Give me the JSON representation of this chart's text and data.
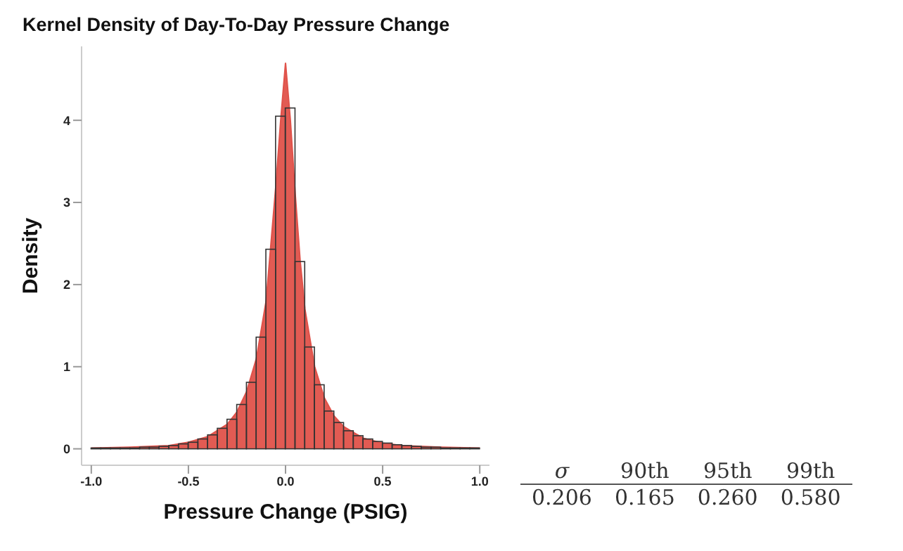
{
  "chart_data": [
    {
      "type": "histogram",
      "title": "Kernel Density of Day-To-Day Pressure Change",
      "xlabel": "Pressure Change (PSIG)",
      "ylabel": "Density",
      "xlim": [
        -1.05,
        1.05
      ],
      "xticks": [
        {
          "value": -1,
          "label": "-1.0"
        },
        {
          "value": -0.5,
          "label": "-0.5"
        },
        {
          "value": 0,
          "label": "0.0"
        },
        {
          "value": 0.5,
          "label": "0.5"
        },
        {
          "value": 1,
          "label": "1.0"
        }
      ],
      "ylim": [
        -0.2,
        4.9
      ],
      "yticks": [
        0,
        1,
        2,
        3,
        4
      ],
      "series": [
        {
          "type": "histogram",
          "color": "#333333",
          "bins": [
            -1.0,
            -0.95,
            -0.9,
            -0.85,
            -0.8,
            -0.75,
            -0.7,
            -0.65,
            -0.6,
            -0.55,
            -0.5,
            -0.45,
            -0.4,
            -0.35,
            -0.3,
            -0.25,
            -0.2,
            -0.15,
            -0.1,
            -0.05,
            0.0,
            0.05,
            0.1,
            0.15,
            0.2,
            0.25,
            0.3,
            0.35,
            0.4,
            0.45,
            0.5,
            0.55,
            0.6,
            0.65,
            0.7,
            0.75,
            0.8,
            0.85,
            0.9,
            0.95,
            1.0
          ],
          "values": [
            0.01,
            0.01,
            0.01,
            0.01,
            0.01,
            0.02,
            0.02,
            0.03,
            0.04,
            0.06,
            0.08,
            0.12,
            0.17,
            0.25,
            0.36,
            0.54,
            0.81,
            1.36,
            2.43,
            4.05,
            4.15,
            2.28,
            1.24,
            0.78,
            0.46,
            0.32,
            0.22,
            0.16,
            0.12,
            0.09,
            0.07,
            0.05,
            0.04,
            0.03,
            0.02,
            0.02,
            0.01,
            0.01,
            0.01,
            0.01
          ]
        },
        {
          "type": "area",
          "color": "#e0524a",
          "x": [
            -1.0,
            -0.8,
            -0.6,
            -0.5,
            -0.4,
            -0.3,
            -0.25,
            -0.2,
            -0.15,
            -0.1,
            -0.075,
            -0.05,
            -0.025,
            0.0,
            0.025,
            0.05,
            0.075,
            0.1,
            0.15,
            0.2,
            0.25,
            0.3,
            0.4,
            0.5,
            0.6,
            0.8,
            1.0
          ],
          "values": [
            0.01,
            0.02,
            0.04,
            0.08,
            0.15,
            0.3,
            0.45,
            0.7,
            1.1,
            1.8,
            2.5,
            3.2,
            4.0,
            4.7,
            4.0,
            3.1,
            2.3,
            1.7,
            1.0,
            0.62,
            0.4,
            0.27,
            0.13,
            0.07,
            0.04,
            0.02,
            0.01
          ]
        }
      ]
    },
    {
      "type": "other",
      "categories": [
        "σ",
        "90th",
        "95th",
        "99th"
      ],
      "value_labels": [
        "0.206",
        "0.165",
        "0.260",
        "0.580"
      ]
    }
  ]
}
